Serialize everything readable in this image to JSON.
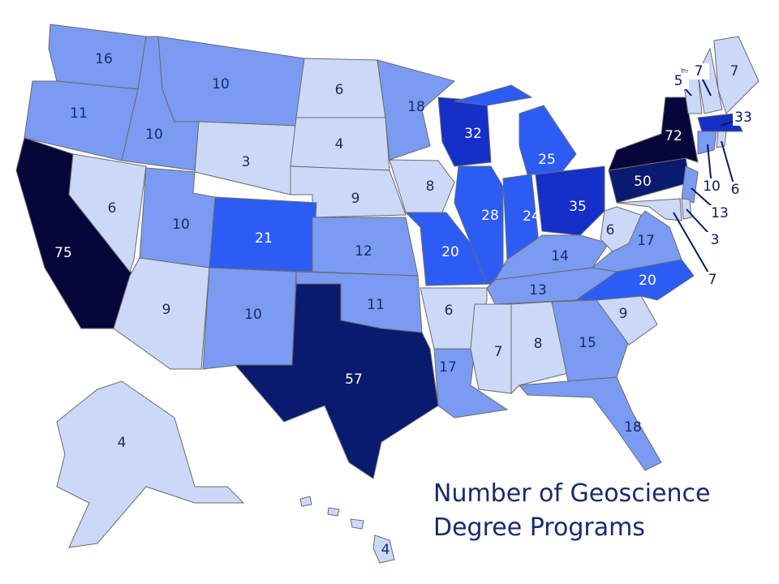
{
  "title": "Number of Geoscience Degree Programs",
  "states": [
    {
      "value": 16,
      "color": "#7b9af2"
    },
    {
      "value": 11,
      "color": "#7b9af2"
    },
    {
      "value": 10,
      "color": "#7b9af2"
    },
    {
      "value": 10,
      "color": "#7b9af2"
    },
    {
      "value": 3,
      "color": "#ccd8f7"
    },
    {
      "value": 6,
      "color": "#ccd8f7"
    },
    {
      "value": 4,
      "color": "#ccd8f7"
    },
    {
      "value": 9,
      "color": "#ccd8f7"
    },
    {
      "value": 75,
      "color": "#07063a"
    },
    {
      "value": 6,
      "color": "#ccd8f7"
    },
    {
      "value": 10,
      "color": "#7b9af2"
    },
    {
      "value": 9,
      "color": "#ccd8f7"
    },
    {
      "value": 21,
      "color": "#2d5cf5"
    },
    {
      "value": 10,
      "color": "#7b9af2"
    },
    {
      "value": 12,
      "color": "#7b9af2"
    },
    {
      "value": 11,
      "color": "#7b9af2"
    },
    {
      "value": 57,
      "color": "#0a1a6e"
    },
    {
      "value": 18,
      "color": "#7b9af2"
    },
    {
      "value": 8,
      "color": "#ccd8f7"
    },
    {
      "value": 20,
      "color": "#2d5cf5"
    },
    {
      "value": 32,
      "color": "#1530c8"
    },
    {
      "value": 25,
      "color": "#2d5cf5"
    },
    {
      "value": 28,
      "color": "#2d5cf5"
    },
    {
      "value": 24,
      "color": "#2d5cf5"
    },
    {
      "value": 35,
      "color": "#1530c8"
    },
    {
      "value": 14,
      "color": "#7b9af2"
    },
    {
      "value": 13,
      "color": "#7b9af2"
    },
    {
      "value": 6,
      "color": "#ccd8f7"
    },
    {
      "value": 17,
      "color": "#7b9af2"
    },
    {
      "value": 7,
      "color": "#ccd8f7"
    },
    {
      "value": 8,
      "color": "#ccd8f7"
    },
    {
      "value": 15,
      "color": "#7b9af2"
    },
    {
      "value": 18,
      "color": "#7b9af2"
    },
    {
      "value": 9,
      "color": "#ccd8f7"
    },
    {
      "value": 20,
      "color": "#2d5cf5"
    },
    {
      "value": 17,
      "color": "#7b9af2"
    },
    {
      "value": 6,
      "color": "#ccd8f7"
    },
    {
      "value": 50,
      "color": "#0a1a6e"
    },
    {
      "value": 72,
      "color": "#07063a"
    },
    {
      "value": 13,
      "color": "#7b9af2"
    },
    {
      "value": 7,
      "color": "#ccd8f7"
    },
    {
      "value": 3,
      "color": "#ccd8f7"
    },
    {
      "value": 5,
      "color": "#ccd8f7"
    },
    {
      "value": 7,
      "color": "#ccd8f7"
    },
    {
      "value": 7,
      "color": "#ccd8f7"
    },
    {
      "value": 33,
      "color": "#1530c8"
    },
    {
      "value": 10,
      "color": "#7b9af2"
    },
    {
      "value": 6,
      "color": "#ccd8f7"
    },
    {
      "value": 4,
      "color": "#ccd8f7"
    },
    {
      "value": 4,
      "color": "#ccd8f7"
    }
  ]
}
